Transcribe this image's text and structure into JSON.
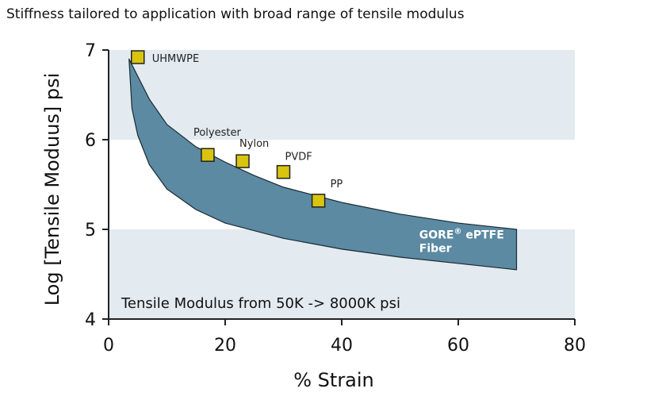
{
  "chart_data": {
    "type": "scatter",
    "title": "Stiffness tailored to application with broad range of tensile modulus",
    "xlabel": "% Strain",
    "ylabel": "Log [Tensile Moduus] psi",
    "xlim": [
      0,
      80
    ],
    "ylim": [
      4,
      7
    ],
    "x_ticks": [
      0,
      20,
      40,
      60,
      80
    ],
    "y_ticks": [
      4,
      5,
      6,
      7
    ],
    "grid": false,
    "y_shaded_bands": [
      [
        4,
        5
      ],
      [
        6,
        7
      ]
    ],
    "colors": {
      "band": "#e3eaf0",
      "region": "#5b8aa2",
      "marker": "#d9c40f"
    },
    "points": [
      {
        "label": "UHMWPE",
        "x": 5,
        "y": 6.92
      },
      {
        "label": "Polyester",
        "x": 17,
        "y": 5.83
      },
      {
        "label": "Nylon",
        "x": 23,
        "y": 5.76
      },
      {
        "label": "PVDF",
        "x": 30,
        "y": 5.64
      },
      {
        "label": "PP",
        "x": 36,
        "y": 5.32
      }
    ],
    "region": {
      "label_line1": "GORE",
      "label_sup": "®",
      "label_line1_rest": " ePTFE",
      "label_line2": "Fiber",
      "upper": [
        [
          3.5,
          6.9
        ],
        [
          7,
          6.45
        ],
        [
          10,
          6.17
        ],
        [
          15,
          5.92
        ],
        [
          20,
          5.75
        ],
        [
          25,
          5.6
        ],
        [
          30,
          5.47
        ],
        [
          40,
          5.3
        ],
        [
          50,
          5.17
        ],
        [
          60,
          5.07
        ],
        [
          70,
          5.0
        ]
      ],
      "lower": [
        [
          3.5,
          6.9
        ],
        [
          4,
          6.35
        ],
        [
          5,
          6.05
        ],
        [
          7,
          5.72
        ],
        [
          10,
          5.45
        ],
        [
          15,
          5.22
        ],
        [
          20,
          5.07
        ],
        [
          30,
          4.9
        ],
        [
          40,
          4.78
        ],
        [
          50,
          4.69
        ],
        [
          60,
          4.62
        ],
        [
          70,
          4.55
        ]
      ]
    },
    "annotation": "Tensile Modulus from 50K -> 8000K psi"
  }
}
